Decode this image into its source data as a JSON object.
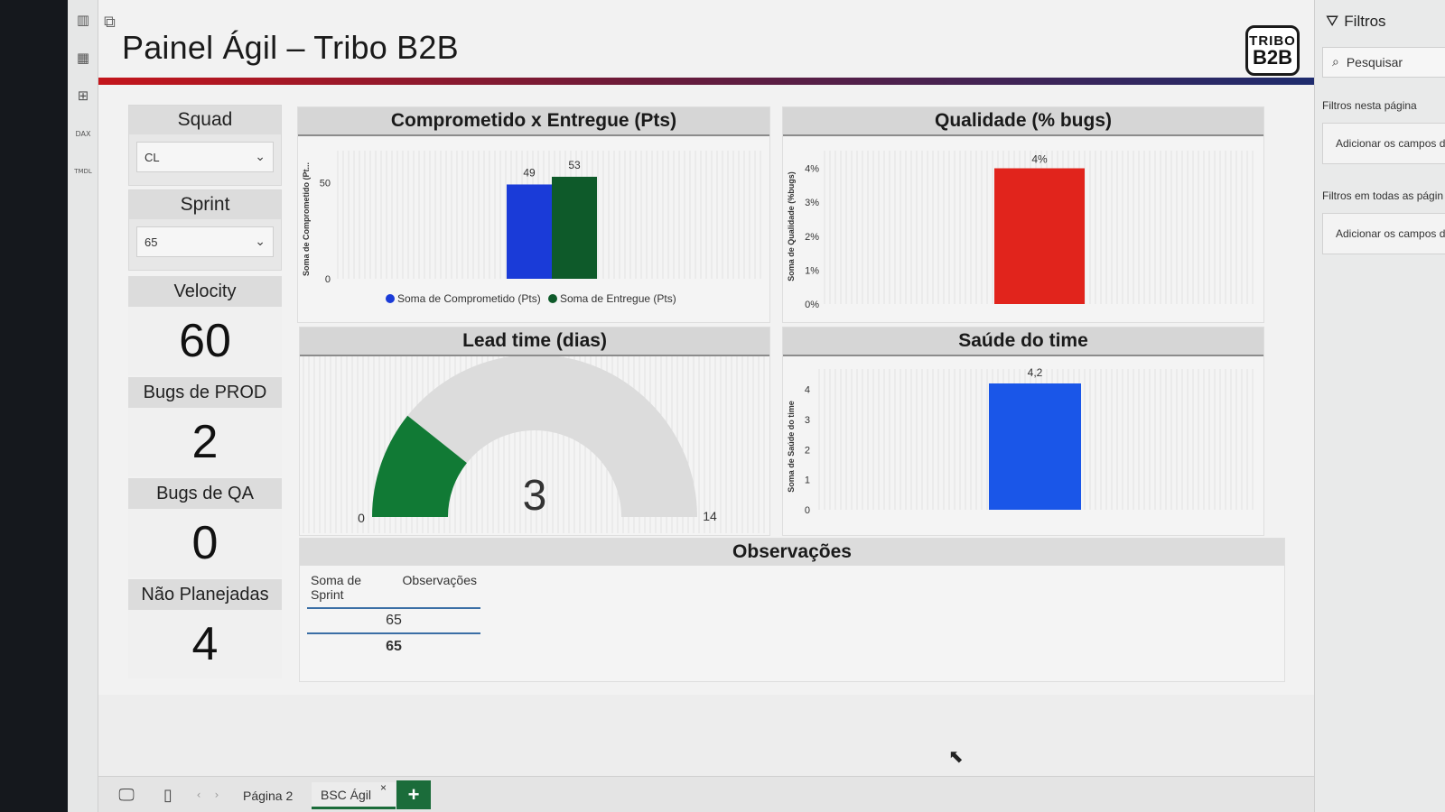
{
  "report": {
    "title": "Painel Ágil – Tribo B2B",
    "logo_line1": "TRIBO",
    "logo_line2": "B2B"
  },
  "rail_icons": [
    "bar-chart-icon",
    "table-icon",
    "model-icon",
    "dax-icon",
    "tmdl-icon"
  ],
  "rail_icon_text": {
    "dax": "DAX",
    "tmdl": "TMDL"
  },
  "slicers": {
    "squad": {
      "title": "Squad",
      "value": "CL"
    },
    "sprint": {
      "title": "Sprint",
      "value": "65"
    }
  },
  "kpis": [
    {
      "title": "Velocity",
      "value": "60"
    },
    {
      "title": "Bugs de PROD",
      "value": "2"
    },
    {
      "title": "Bugs de QA",
      "value": "0"
    },
    {
      "title": "Não Planejadas",
      "value": "4"
    }
  ],
  "visuals": {
    "committed": {
      "title": "Comprometido x Entregue (Pts)"
    },
    "quality": {
      "title": "Qualidade (% bugs)"
    },
    "lead": {
      "title": "Lead time (dias)"
    },
    "health": {
      "title": "Saúde do time"
    },
    "obs": {
      "title": "Observações"
    }
  },
  "chart_data": [
    {
      "type": "bar",
      "title": "Comprometido x Entregue (Pts)",
      "ylabel": "Soma de Comprometido (Pt...",
      "ylim": [
        0,
        60
      ],
      "yticks": [
        0,
        50
      ],
      "categories": [
        ""
      ],
      "series": [
        {
          "name": "Soma de Comprometido (Pts)",
          "values": [
            49
          ],
          "color": "#1a3bd8"
        },
        {
          "name": "Soma de Entregue (Pts)",
          "values": [
            53
          ],
          "color": "#0e5a2a"
        }
      ],
      "legend": "bottom"
    },
    {
      "type": "bar",
      "title": "Qualidade (% bugs)",
      "ylabel": "Soma de Qualidade (%bugs)",
      "ylim": [
        0,
        4.2
      ],
      "yticks": [
        "0%",
        "1%",
        "2%",
        "3%",
        "4%"
      ],
      "categories": [
        ""
      ],
      "series": [
        {
          "values": [
            4
          ],
          "label": "4%",
          "color": "#e1241c"
        }
      ]
    },
    {
      "type": "gauge",
      "title": "Lead time (dias)",
      "min": 0,
      "max": 14,
      "value": 3,
      "min_label": "0",
      "max_label": "14",
      "value_label": "3",
      "color": "#117a35",
      "track_color": "#dcdcdc"
    },
    {
      "type": "bar",
      "title": "Saúde do time",
      "ylabel": "Soma de Saúde do time",
      "ylim": [
        0,
        4.2
      ],
      "yticks": [
        0,
        1,
        2,
        3,
        4
      ],
      "categories": [
        ""
      ],
      "series": [
        {
          "values": [
            4.2
          ],
          "label": "4,2",
          "color": "#1a56e8"
        }
      ]
    },
    {
      "type": "table",
      "title": "Observações",
      "columns": [
        "Soma de Sprint",
        "Observações"
      ],
      "rows": [
        [
          "65",
          ""
        ]
      ],
      "total": "65"
    }
  ],
  "tabs": {
    "page2": "Página 2",
    "active": "BSC Ágil",
    "close": "×",
    "add": "+"
  },
  "filters": {
    "title": "Filtros",
    "search_placeholder": "Pesquisar",
    "on_page_label": "Filtros nesta página",
    "on_page_well": "Adicionar os campos d",
    "all_pages_label": "Filtros em todas as págin",
    "all_pages_well": "Adicionar os campos d"
  }
}
